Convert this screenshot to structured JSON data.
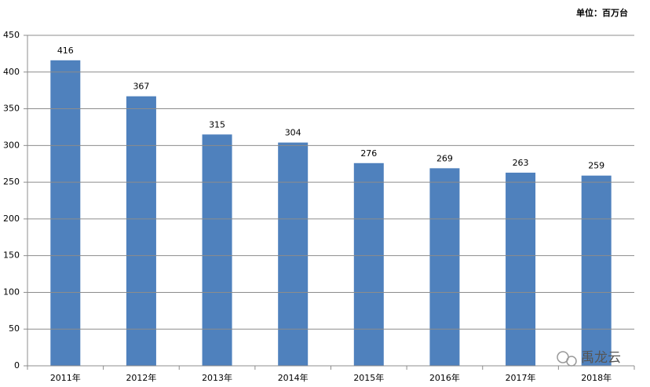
{
  "chart_data": {
    "type": "bar",
    "subtitle": "单位：百万台",
    "watermark": "禹龙云",
    "categories": [
      "2011年",
      "2012年",
      "2013年",
      "2014年",
      "2015年",
      "2016年",
      "2017年",
      "2018年"
    ],
    "values": [
      416,
      367,
      315,
      304,
      276,
      269,
      263,
      259
    ],
    "color": "#4f81bd",
    "ylim": [
      0,
      450
    ],
    "yticks": [
      0,
      50,
      100,
      150,
      200,
      250,
      300,
      350,
      400,
      450
    ],
    "grid": true
  }
}
